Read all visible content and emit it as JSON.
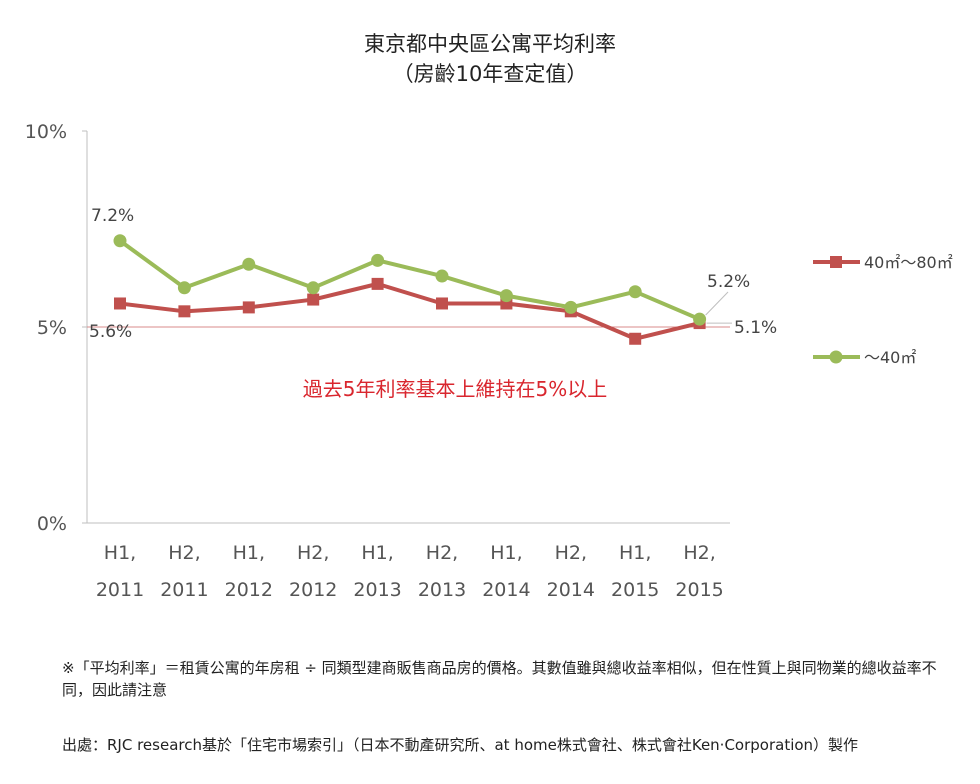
{
  "title": "東京都中央區公寓平均利率",
  "subtitle": "（房齡10年查定值）",
  "chart_data": {
    "type": "line",
    "categories": [
      [
        "H1,",
        "2011"
      ],
      [
        "H2,",
        "2011"
      ],
      [
        "H1,",
        "2012"
      ],
      [
        "H2,",
        "2012"
      ],
      [
        "H1,",
        "2013"
      ],
      [
        "H2,",
        "2013"
      ],
      [
        "H1,",
        "2014"
      ],
      [
        "H2,",
        "2014"
      ],
      [
        "H1,",
        "2015"
      ],
      [
        "H2,",
        "2015"
      ]
    ],
    "ylim": [
      0,
      10
    ],
    "yticks": [
      {
        "value": 0,
        "label": "0%"
      },
      {
        "value": 5,
        "label": "5%"
      },
      {
        "value": 10,
        "label": "10%"
      }
    ],
    "reference_line": 5,
    "series": [
      {
        "name": "40㎡～80㎡",
        "color": "#c0504d",
        "marker": "square",
        "values": [
          5.6,
          5.4,
          5.5,
          5.7,
          6.1,
          5.6,
          5.6,
          5.4,
          4.7,
          5.1
        ],
        "first_label": "5.6%",
        "last_label": "5.1%"
      },
      {
        "name": "～40㎡",
        "color": "#9bbb59",
        "marker": "circle",
        "values": [
          7.2,
          6.0,
          6.6,
          6.0,
          6.7,
          6.3,
          5.8,
          5.5,
          5.9,
          5.2
        ],
        "first_label": "7.2%",
        "last_label": "5.2%"
      }
    ],
    "annotation": "過去5年利率基本上維持在5%以上",
    "annotation_color": "#d9262e",
    "legend": "right"
  },
  "notes": [
    "※「平均利率」＝租賃公寓的年房租 ÷ 同類型建商販售商品房的價格。其數值雖與總收益率相似，但在性質上與同物業的總收益率不同，因此請注意",
    "出處：RJC research基於「住宅市場索引」（日本不動產研究所、at home株式會社、株式會社Ken·Corporation）製作"
  ]
}
